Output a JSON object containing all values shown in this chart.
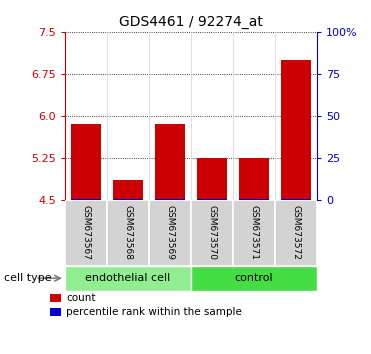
{
  "title": "GDS4461 / 92274_at",
  "samples": [
    "GSM673567",
    "GSM673568",
    "GSM673569",
    "GSM673570",
    "GSM673571",
    "GSM673572"
  ],
  "red_values": [
    5.85,
    4.85,
    5.85,
    5.25,
    5.25,
    7.0
  ],
  "blue_values": [
    4.515,
    4.515,
    4.515,
    4.515,
    4.515,
    4.515
  ],
  "y_min": 4.5,
  "y_max": 7.5,
  "y_ticks": [
    4.5,
    5.25,
    6.0,
    6.75,
    7.5
  ],
  "y_ticks_right": [
    0,
    25,
    50,
    75,
    100
  ],
  "y_ticks_right_labels": [
    "0",
    "25",
    "50",
    "75",
    "100%"
  ],
  "cat1_label": "endothelial cell",
  "cat1_color": "#90EE90",
  "cat1_range": [
    0,
    2
  ],
  "cat2_label": "control",
  "cat2_color": "#44DD44",
  "cat2_range": [
    3,
    5
  ],
  "red_color": "#CC0000",
  "blue_color": "#0000CC",
  "bg_color": "#ffffff",
  "sample_box_color": "#d3d3d3",
  "cell_type_label": "cell type",
  "legend_count_label": "count",
  "legend_pct_label": "percentile rank within the sample",
  "left_axis_color": "#CC0000",
  "right_axis_color": "#0000CC",
  "title_fontsize": 10,
  "tick_fontsize": 8,
  "sample_fontsize": 6.5,
  "cat_fontsize": 8,
  "legend_fontsize": 7.5
}
